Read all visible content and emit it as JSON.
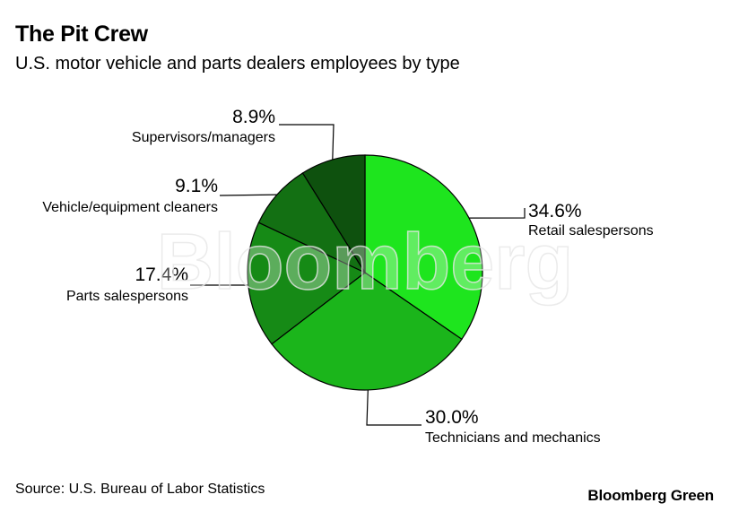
{
  "header": {
    "title": "The Pit Crew",
    "subtitle": "U.S. motor vehicle and parts dealers employees by type"
  },
  "footer": {
    "source": "Source: U.S. Bureau of Labor Statistics",
    "brand": "Bloomberg Green"
  },
  "watermark": "Bloomberg",
  "chart_data": {
    "type": "pie",
    "title": "The Pit Crew",
    "subtitle": "U.S. motor vehicle and parts dealers employees by type",
    "slices": [
      {
        "label": "Retail salespersons",
        "value": 34.6,
        "value_label": "34.6%",
        "color": "#1ee51e"
      },
      {
        "label": "Technicians and mechanics",
        "value": 30.0,
        "value_label": "30.0%",
        "color": "#1bb51b"
      },
      {
        "label": "Parts salespersons",
        "value": 17.4,
        "value_label": "17.4%",
        "color": "#168a16"
      },
      {
        "label": "Vehicle/equipment cleaners",
        "value": 9.1,
        "value_label": "9.1%",
        "color": "#137013"
      },
      {
        "label": "Supervisors/managers",
        "value": 8.9,
        "value_label": "8.9%",
        "color": "#0e510e"
      }
    ],
    "start_angle": "12 o'clock",
    "direction": "clockwise",
    "legend": "none"
  }
}
